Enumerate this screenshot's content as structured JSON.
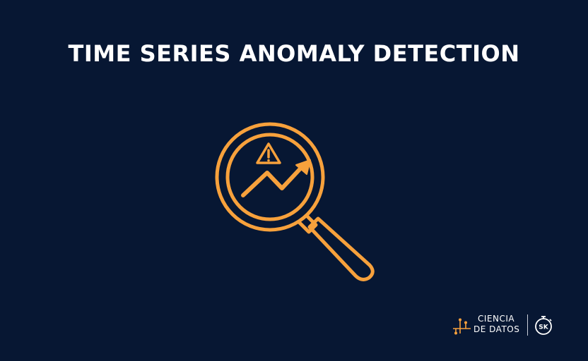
{
  "title": "TIME SERIES ANOMALY DETECTION",
  "icon": {
    "name": "magnifier-anomaly-trend-icon",
    "warning_icon": "warning-triangle-icon",
    "trend_icon": "trending-up-arrow-icon"
  },
  "brand": {
    "line1": "CIENCIA",
    "line2": "DE DATOS",
    "logo_text": "SK",
    "logo_icon": "stopwatch-icon"
  },
  "colors": {
    "background": "#071733",
    "accent": "#F7A13C",
    "text": "#FFFFFF"
  }
}
